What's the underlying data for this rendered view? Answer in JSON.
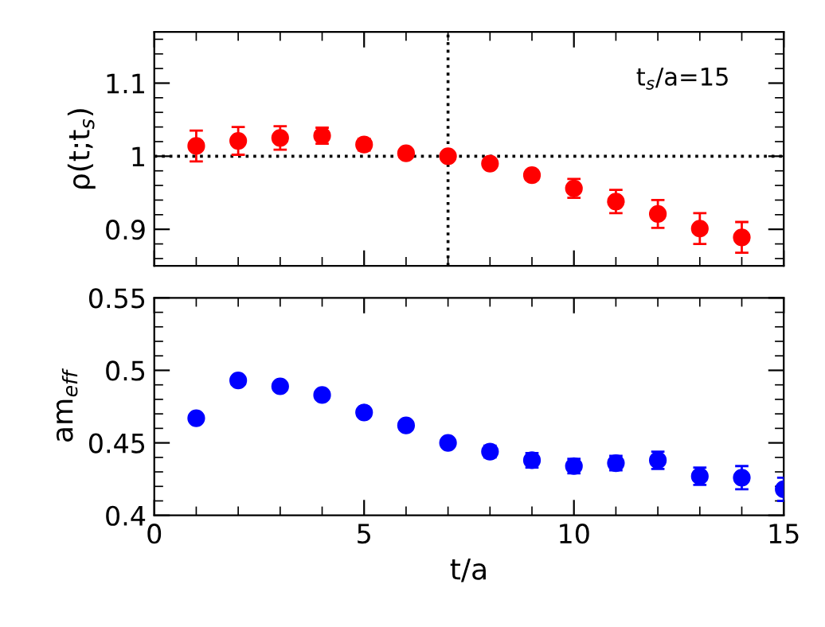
{
  "chart_data": [
    {
      "type": "scatter",
      "ylabel": "ρ(t;t$_{s}$)",
      "x": [
        1,
        2,
        3,
        4,
        5,
        6,
        7,
        8,
        9,
        10,
        11,
        12,
        13,
        14
      ],
      "xlim": [
        0,
        15
      ],
      "xticks": [
        0,
        5,
        10,
        15
      ],
      "ylim": [
        0.85,
        1.17
      ],
      "yticks": [
        0.9,
        1,
        1.1
      ],
      "tick_labels": "y",
      "marker": "circle",
      "series": [
        {
          "color": "#ff0000",
          "values": [
            1.014,
            1.021,
            1.025,
            1.028,
            1.016,
            1.004,
            1.0,
            0.99,
            0.974,
            0.956,
            0.938,
            0.921,
            0.901,
            0.889
          ],
          "errors": [
            0.021,
            0.019,
            0.016,
            0.011,
            0.008,
            0.004,
            null,
            0.004,
            0.007,
            0.013,
            0.016,
            0.019,
            0.021,
            0.021
          ]
        }
      ],
      "ref_lines": [
        {
          "axis": "y",
          "value": 1,
          "line_style": "dotted",
          "color": "#000000"
        },
        {
          "axis": "x",
          "value": 7,
          "line_style": "dotted",
          "color": "#000000"
        }
      ],
      "annotations": [
        "t$_{s}$/a=15"
      ]
    },
    {
      "type": "scatter",
      "xlabel": "t/a",
      "ylabel": "am$_{eff}$",
      "x": [
        1,
        2,
        3,
        4,
        5,
        6,
        7,
        8,
        9,
        10,
        11,
        12,
        13,
        14,
        15
      ],
      "xlim": [
        0,
        15
      ],
      "xticks": [
        0,
        5,
        10,
        15
      ],
      "ylim": [
        0.4,
        0.55
      ],
      "yticks": [
        0.4,
        0.45,
        0.5,
        0.55
      ],
      "marker": "circle",
      "series": [
        {
          "color": "#0000ff",
          "values": [
            0.467,
            0.493,
            0.489,
            0.483,
            0.471,
            0.462,
            0.45,
            0.444,
            0.438,
            0.434,
            0.436,
            0.438,
            0.427,
            0.426,
            0.418
          ],
          "errors": [
            0.002,
            0.002,
            0.002,
            0.002,
            0.002,
            0.003,
            0.003,
            0.004,
            0.005,
            0.005,
            0.005,
            0.006,
            0.006,
            0.008,
            0.008
          ]
        }
      ]
    }
  ]
}
